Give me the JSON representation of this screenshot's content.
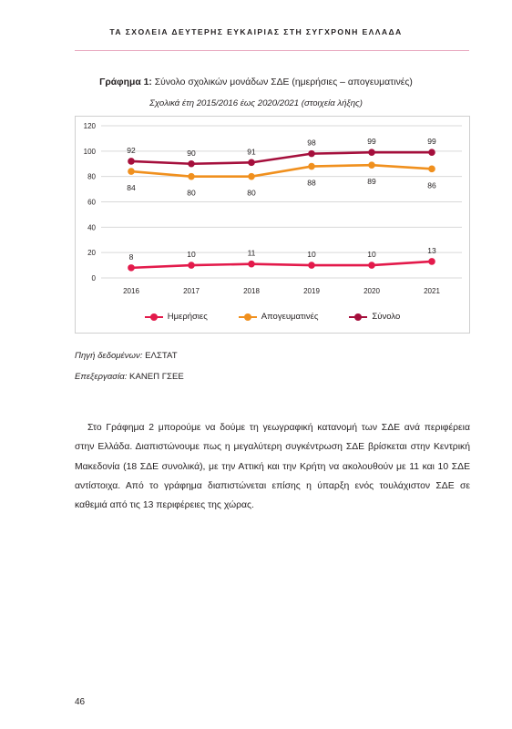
{
  "running_head": "ΤΑ ΣΧΟΛΕΙΑ ΔΕΥΤΕΡΗΣ ΕΥΚΑΙΡΙΑΣ ΣΤΗ ΣΥΓΧΡΟΝΗ ΕΛΛΑΔΑ",
  "figure": {
    "label": "Γράφημα 1:",
    "title": " Σύνολο σχολικών μονάδων ΣΔΕ (ημερήσιες – απογευματινές)",
    "subtitle": "Σχολικά έτη 2015/2016 έως 2020/2021 (στοιχεία λήξης)"
  },
  "chart_data": {
    "type": "line",
    "x": [
      "2016",
      "2017",
      "2018",
      "2019",
      "2020",
      "2021"
    ],
    "ylim": [
      0,
      120
    ],
    "yticks": [
      "0",
      "20",
      "40",
      "60",
      "80",
      "100",
      "120"
    ],
    "grid": true,
    "legend_position": "bottom",
    "series": [
      {
        "name": "Ημερήσιες",
        "values": [
          8,
          10,
          11,
          10,
          10,
          13
        ],
        "color": "#e31a4b"
      },
      {
        "name": "Απογευματινές",
        "values": [
          84,
          80,
          80,
          88,
          89,
          86
        ],
        "color": "#f0901e"
      },
      {
        "name": "Σύνολο",
        "values": [
          92,
          90,
          91,
          98,
          99,
          99
        ],
        "color": "#a50f3c"
      }
    ]
  },
  "source": {
    "label": "Πηγή δεδομένων:",
    "value": " ΕΛΣΤΑΤ"
  },
  "processing": {
    "label": "Επεξεργασία:",
    "value": " ΚΑΝΕΠ ΓΣΕΕ"
  },
  "body_paragraph": "Στο Γράφημα 2 μπορούμε να δούμε τη γεωγραφική κατανομή των ΣΔΕ ανά περιφέρεια στην Ελλάδα. Διαπιστώνουμε πως η μεγαλύτερη συγκέντρωση ΣΔΕ βρίσκεται στην Κεντρική Μακεδονία (18 ΣΔΕ συνολικά), με την Αττική και την Κρήτη να ακολουθούν με 11 και 10 ΣΔΕ αντίστοιχα. Από το γράφημα διαπιστώνεται επίσης η ύπαρξη ενός τουλάχιστον ΣΔΕ σε καθεμιά από τις 13 περιφέρειες της χώρας.",
  "page_number": "46"
}
